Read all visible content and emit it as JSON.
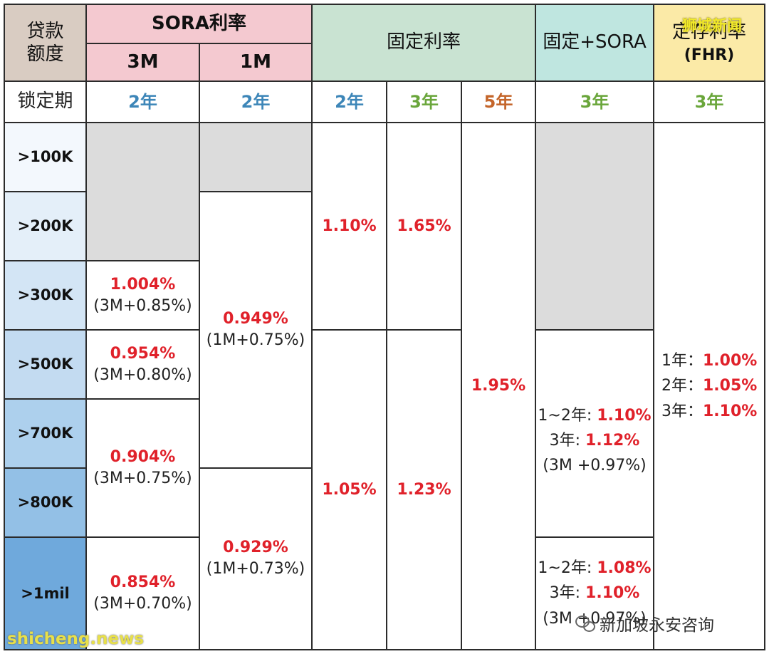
{
  "header": {
    "loan_amount": "贷款额度",
    "sora": "SORA利率",
    "sora_3m": "3M",
    "sora_1m": "1M",
    "fixed": "固定利率",
    "fixed_sora": "固定+SORA",
    "fhr": "定存利率",
    "fhr_sub": "(FHR)"
  },
  "lock": {
    "label": "锁定期",
    "sora_3m": "2年",
    "sora_1m": "2年",
    "fixed_2y": "2年",
    "fixed_3y": "3年",
    "fixed_5y": "5年",
    "fixed_sora": "3年",
    "fhr": "3年"
  },
  "amounts": [
    ">100K",
    ">200K",
    ">300K",
    ">500K",
    ">700K",
    ">800K",
    ">1mil"
  ],
  "sora_3m": [
    {
      "rate": "1.004%",
      "note": "(3M+0.85%)"
    },
    {
      "rate": "0.954%",
      "note": "(3M+0.80%)"
    },
    {
      "rate": "0.904%",
      "note": "(3M+0.75%)"
    },
    {
      "rate": "0.854%",
      "note": "(3M+0.70%)"
    }
  ],
  "sora_1m": [
    {
      "rate": "0.949%",
      "note": "(1M+0.75%)"
    },
    {
      "rate": "0.929%",
      "note": "(1M+0.73%)"
    }
  ],
  "fixed": {
    "y2_top": "1.10%",
    "y3_top": "1.65%",
    "y2_bottom": "1.05%",
    "y3_bottom": "1.23%",
    "y5": "1.95%"
  },
  "fixed_sora": [
    {
      "l1": "1~2年: ",
      "r1": "1.10%",
      "l2": "3年: ",
      "r2": "1.12%",
      "note": "(3M +0.97%)"
    },
    {
      "l1": "1~2年: ",
      "r1": "1.08%",
      "l2": "3年: ",
      "r2": "1.10%",
      "note": "(3M +0.97%)"
    }
  ],
  "fhr": {
    "l1": "1年：",
    "r1": "1.00%",
    "l2": "2年：",
    "r2": "1.05%",
    "l3": "3年：",
    "r3": "1.10%"
  },
  "watermarks": {
    "top": "狮城新闻",
    "bottom_left": "shicheng.news",
    "bottom_right": "新加坡永安咨询"
  },
  "colors": {
    "loan_header": "#d9ccc2",
    "sora_header": "#f4c9d0",
    "fixed_header": "#c9e3d2",
    "fixed_sora_header": "#bfe6e0",
    "fhr_header": "#fbeaa7",
    "rate_red": "#e0212a",
    "lock_blue": "#3d86b8",
    "lock_green": "#6aa63b",
    "lock_orange": "#c4652a",
    "amount_gradient": [
      "#f3f8fd",
      "#e4eff9",
      "#d3e5f5",
      "#c3dbf1",
      "#add0ed",
      "#93c0e6",
      "#6fa9dc"
    ]
  }
}
